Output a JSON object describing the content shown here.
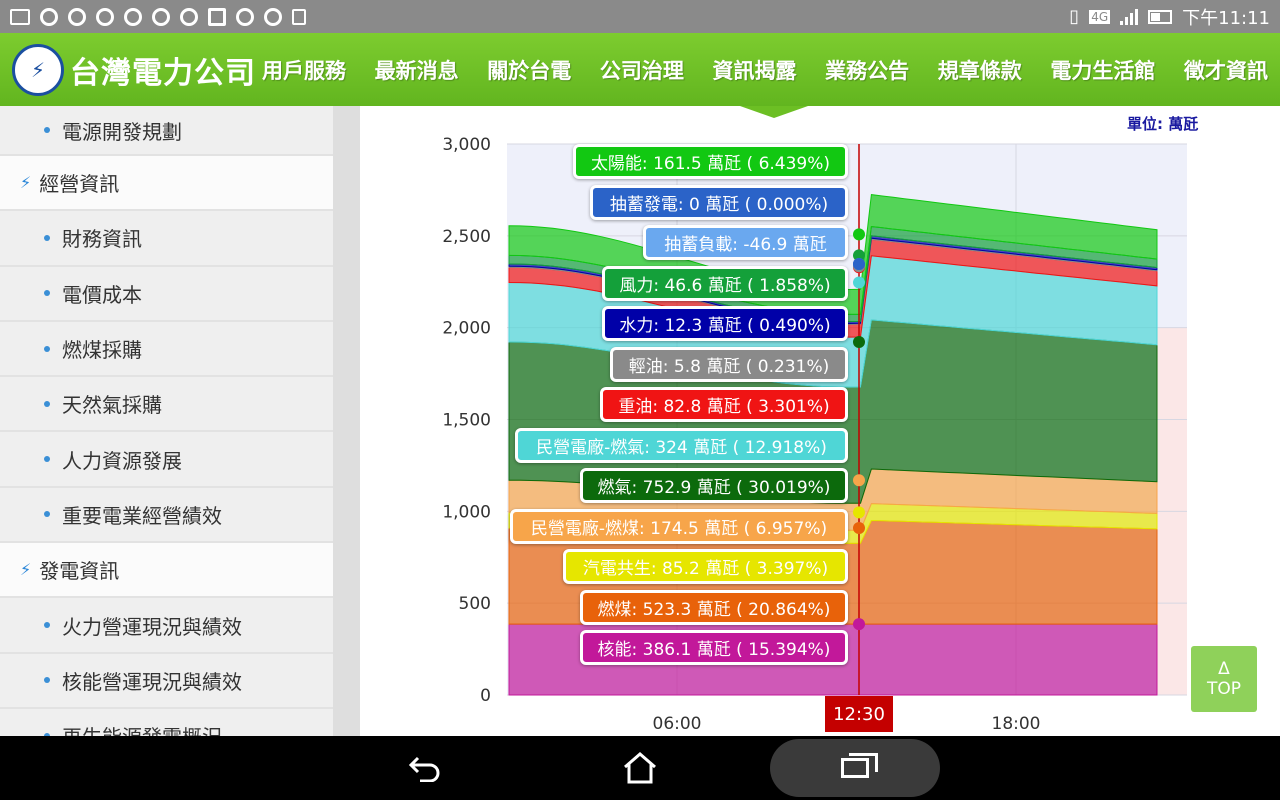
{
  "status_bar": {
    "time": "下午11:11",
    "network": "4G",
    "icons": [
      "image-icon",
      "circle-icon",
      "circle-icon",
      "circle-icon",
      "circle-icon",
      "circle-icon",
      "chrome-icon",
      "hotspot-icon",
      "circle-icon",
      "circle-icon",
      "sdcard-icon"
    ]
  },
  "header": {
    "logo_text": "台灣電力公司",
    "nav": [
      "用戶服務",
      "最新消息",
      "關於台電",
      "公司治理",
      "資訊揭露",
      "業務公告",
      "規章條款",
      "電力生活館",
      "徵才資訊"
    ]
  },
  "sidebar": {
    "items": [
      {
        "type": "sub",
        "label": "電源開發規劃"
      },
      {
        "type": "cat",
        "label": "經營資訊"
      },
      {
        "type": "sub",
        "label": "財務資訊"
      },
      {
        "type": "sub",
        "label": "電價成本"
      },
      {
        "type": "sub",
        "label": "燃煤採購"
      },
      {
        "type": "sub",
        "label": "天然氣採購"
      },
      {
        "type": "sub",
        "label": "人力資源發展"
      },
      {
        "type": "sub",
        "label": "重要電業經營績效"
      },
      {
        "type": "cat",
        "label": "發電資訊"
      },
      {
        "type": "sub",
        "label": "火力營運現況與績效"
      },
      {
        "type": "sub",
        "label": "核能營運現況與績效"
      },
      {
        "type": "sub",
        "label": "再生能源發電概況"
      }
    ]
  },
  "chart": {
    "unit_label": "單位: 萬瓩",
    "cursor_time": "12:30",
    "top_button": {
      "arrow": "Δ",
      "label": "TOP"
    }
  },
  "chart_data": {
    "type": "area",
    "x_ticks": [
      "06:00",
      "12:30",
      "18:00"
    ],
    "ylim": [
      0,
      3000
    ],
    "y_ticks": [
      0,
      500,
      1000,
      1500,
      2000,
      2500,
      3000
    ],
    "grid": true,
    "series": [
      {
        "name": "核能",
        "value": 386.1,
        "pct": "15.394%",
        "color": "#c2189a"
      },
      {
        "name": "燃煤",
        "value": 523.3,
        "pct": "20.864%",
        "color": "#e8620a"
      },
      {
        "name": "汽電共生",
        "value": 85.2,
        "pct": "3.397%",
        "color": "#e6e600"
      },
      {
        "name": "民營電廠-燃煤",
        "value": 174.5,
        "pct": "6.957%",
        "color": "#f7a54a"
      },
      {
        "name": "燃氣",
        "value": 752.9,
        "pct": "30.019%",
        "color": "#0c6a0c"
      },
      {
        "name": "民營電廠-燃氣",
        "value": 324,
        "pct": "12.918%",
        "color": "#4fd6d6"
      },
      {
        "name": "重油",
        "value": 82.8,
        "pct": "3.301%",
        "color": "#f01414"
      },
      {
        "name": "輕油",
        "value": 5.8,
        "pct": "0.231%",
        "color": "#8a8a8a"
      },
      {
        "name": "水力",
        "value": 12.3,
        "pct": "0.490%",
        "color": "#0000a8"
      },
      {
        "name": "風力",
        "value": 46.6,
        "pct": "1.858%",
        "color": "#14a03a"
      },
      {
        "name": "抽蓄負載",
        "value": -46.9,
        "pct": "",
        "color": "#6aa8ef"
      },
      {
        "name": "抽蓄發電",
        "value": 0,
        "pct": "0.000%",
        "color": "#2b63c8"
      },
      {
        "name": "太陽能",
        "value": 161.5,
        "pct": "6.439%",
        "color": "#12c812"
      }
    ],
    "tooltips": [
      {
        "text": "太陽能: 161.5 萬瓩 ( 6.439%)",
        "color": "#12c812"
      },
      {
        "text": "抽蓄發電: 0 萬瓩 ( 0.000%)",
        "color": "#2b63c8"
      },
      {
        "text": "抽蓄負載: -46.9 萬瓩",
        "color": "#6aa8ef"
      },
      {
        "text": "風力: 46.6 萬瓩 ( 1.858%)",
        "color": "#14a03a"
      },
      {
        "text": "水力: 12.3 萬瓩 ( 0.490%)",
        "color": "#0000a8"
      },
      {
        "text": "輕油: 5.8 萬瓩 ( 0.231%)",
        "color": "#8a8a8a"
      },
      {
        "text": "重油: 82.8 萬瓩 ( 3.301%)",
        "color": "#f01414"
      },
      {
        "text": "民營電廠-燃氣: 324 萬瓩 ( 12.918%)",
        "color": "#4fd6d6"
      },
      {
        "text": "燃氣: 752.9 萬瓩 ( 30.019%)",
        "color": "#0c6a0c"
      },
      {
        "text": "民營電廠-燃煤: 174.5 萬瓩 ( 6.957%)",
        "color": "#f7a54a"
      },
      {
        "text": "汽電共生: 85.2 萬瓩 ( 3.397%)",
        "color": "#e6e600"
      },
      {
        "text": "燃煤: 523.3 萬瓩 ( 20.864%)",
        "color": "#e8620a"
      },
      {
        "text": "核能: 386.1 萬瓩 ( 15.394%)",
        "color": "#c2189a"
      }
    ]
  }
}
